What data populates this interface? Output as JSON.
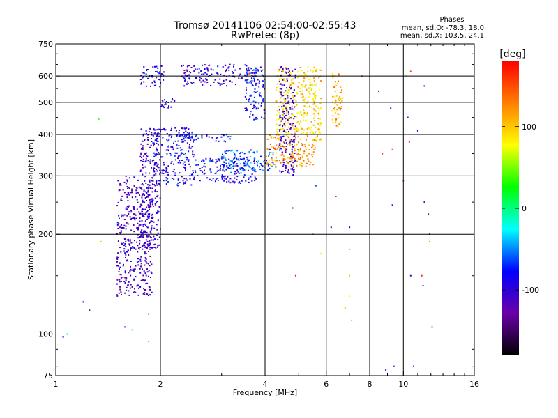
{
  "header": {
    "title_line1": "Tromsø 20141106 02:54:00-02:55:43",
    "title_line2": "RwPretec (8p)"
  },
  "stats": {
    "heading": "Phases",
    "line_o": "mean, sd,O: -78.3, 18.0",
    "line_x": "mean, sd,X: 103.5, 24.1"
  },
  "colorbar": {
    "unit_label": "[deg]",
    "ticks": [
      "100",
      "0",
      "-100"
    ],
    "tick_values": [
      100,
      0,
      -100
    ],
    "range": [
      -180,
      180
    ],
    "colors": [
      "#000000",
      "#6a00a8",
      "#0000ff",
      "#00ffff",
      "#00ff00",
      "#ffff00",
      "#ff8000",
      "#ff0000"
    ]
  },
  "chart_data": {
    "type": "scatter",
    "xlabel": "Frequency [MHz]",
    "ylabel": "Stationary phase Virtual Height [km]",
    "xscale": "log",
    "yscale": "log",
    "xlim": [
      1,
      16
    ],
    "ylim": [
      75,
      750
    ],
    "x_ticks": [
      1,
      2,
      4,
      6,
      8,
      10,
      16
    ],
    "x_tick_labels": [
      "1",
      "2",
      "4",
      "6",
      "8",
      "10",
      "16"
    ],
    "y_ticks": [
      75,
      100,
      200,
      300,
      400,
      500,
      600,
      750
    ],
    "y_tick_labels": [
      "75",
      "100",
      "200",
      "300",
      "400",
      "500",
      "600",
      "750"
    ],
    "grid": "on",
    "color_by": "phase [deg]",
    "clusters": [
      {
        "x": [
          1.5,
          1.9
        ],
        "y": [
          130,
          300
        ],
        "phase": -110
      },
      {
        "x": [
          1.75,
          2.0
        ],
        "y": [
          180,
          420
        ],
        "phase": -105
      },
      {
        "x": [
          1.9,
          2.5
        ],
        "y": [
          280,
          420
        ],
        "phase": -90
      },
      {
        "x": [
          2.5,
          3.8
        ],
        "y": [
          285,
          340
        ],
        "phase": -85
      },
      {
        "x": [
          3.0,
          4.3
        ],
        "y": [
          310,
          360
        ],
        "phase": -60
      },
      {
        "x": [
          4.0,
          5.6
        ],
        "y": [
          320,
          400
        ],
        "phase": 120
      },
      {
        "x": [
          4.3,
          5.6
        ],
        "y": [
          400,
          640
        ],
        "phase": 95
      },
      {
        "x": [
          4.4,
          4.9
        ],
        "y": [
          300,
          650
        ],
        "phase": -110
      },
      {
        "x": [
          1.75,
          2.05
        ],
        "y": [
          555,
          650
        ],
        "phase": -90
      },
      {
        "x": [
          2.3,
          3.8
        ],
        "y": [
          560,
          650
        ],
        "phase": -100
      },
      {
        "x": [
          3.5,
          4.0
        ],
        "y": [
          440,
          640
        ],
        "phase": -80
      },
      {
        "x": [
          5.5,
          5.8
        ],
        "y": [
          380,
          640
        ],
        "phase": 100
      },
      {
        "x": [
          6.2,
          6.7
        ],
        "y": [
          420,
          620
        ],
        "phase": 110
      },
      {
        "x": [
          2.2,
          3.2
        ],
        "y": [
          380,
          400
        ],
        "phase": -80
      },
      {
        "x": [
          2.0,
          2.2
        ],
        "y": [
          480,
          520
        ],
        "phase": -90
      }
    ],
    "sparse_points": [
      {
        "x": 1.05,
        "y": 98,
        "phase": -100
      },
      {
        "x": 1.08,
        "y": 100,
        "phase": 20
      },
      {
        "x": 1.2,
        "y": 125,
        "phase": -90
      },
      {
        "x": 1.25,
        "y": 118,
        "phase": -120
      },
      {
        "x": 1.35,
        "y": 190,
        "phase": 60
      },
      {
        "x": 1.33,
        "y": 445,
        "phase": 40
      },
      {
        "x": 1.58,
        "y": 105,
        "phase": -60
      },
      {
        "x": 1.66,
        "y": 103,
        "phase": -10
      },
      {
        "x": 1.85,
        "y": 95,
        "phase": -30
      },
      {
        "x": 1.85,
        "y": 115,
        "phase": -50
      },
      {
        "x": 3.6,
        "y": 610,
        "phase": 150
      },
      {
        "x": 5.5,
        "y": 200,
        "phase": 120
      },
      {
        "x": 5.6,
        "y": 280,
        "phase": -60
      },
      {
        "x": 6.2,
        "y": 210,
        "phase": -120
      },
      {
        "x": 6.4,
        "y": 260,
        "phase": 160
      },
      {
        "x": 7.0,
        "y": 180,
        "phase": 110
      },
      {
        "x": 7.0,
        "y": 210,
        "phase": -80
      },
      {
        "x": 6.8,
        "y": 120,
        "phase": 100
      },
      {
        "x": 7.1,
        "y": 110,
        "phase": 120
      },
      {
        "x": 7.0,
        "y": 130,
        "phase": 80
      },
      {
        "x": 7.0,
        "y": 150,
        "phase": 50
      },
      {
        "x": 5.8,
        "y": 175,
        "phase": 90
      },
      {
        "x": 4.9,
        "y": 150,
        "phase": 170
      },
      {
        "x": 4.8,
        "y": 240,
        "phase": -120
      },
      {
        "x": 7.6,
        "y": 600,
        "phase": 140
      },
      {
        "x": 8.5,
        "y": 540,
        "phase": -120
      },
      {
        "x": 8.7,
        "y": 350,
        "phase": 160
      },
      {
        "x": 9.3,
        "y": 360,
        "phase": 140
      },
      {
        "x": 9.2,
        "y": 480,
        "phase": -110
      },
      {
        "x": 9.3,
        "y": 245,
        "phase": -110
      },
      {
        "x": 9.4,
        "y": 80,
        "phase": -100
      },
      {
        "x": 8.9,
        "y": 78,
        "phase": -120
      },
      {
        "x": 10.2,
        "y": 600,
        "phase": 60
      },
      {
        "x": 10.5,
        "y": 620,
        "phase": 150
      },
      {
        "x": 10.3,
        "y": 450,
        "phase": -120
      },
      {
        "x": 10.4,
        "y": 380,
        "phase": 170
      },
      {
        "x": 10.0,
        "y": 290,
        "phase": 150
      },
      {
        "x": 10.5,
        "y": 150,
        "phase": -110
      },
      {
        "x": 11.3,
        "y": 150,
        "phase": 170
      },
      {
        "x": 11.4,
        "y": 140,
        "phase": -100
      },
      {
        "x": 11.5,
        "y": 560,
        "phase": -90
      },
      {
        "x": 11.5,
        "y": 250,
        "phase": -110
      },
      {
        "x": 11.8,
        "y": 230,
        "phase": -130
      },
      {
        "x": 11.9,
        "y": 200,
        "phase": -150
      },
      {
        "x": 11.9,
        "y": 190,
        "phase": 110
      },
      {
        "x": 12.1,
        "y": 105,
        "phase": -60
      },
      {
        "x": 10.7,
        "y": 80,
        "phase": -80
      },
      {
        "x": 11.0,
        "y": 410,
        "phase": -100
      }
    ]
  }
}
